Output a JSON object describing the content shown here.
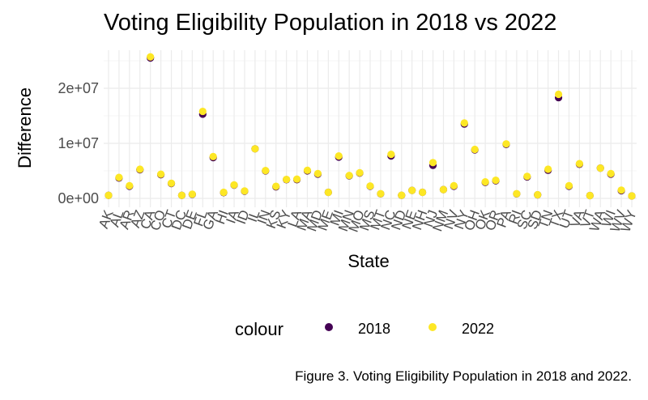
{
  "caption": "Figure 3. Voting Eligibility Population in 2018 and 2022.",
  "chart_data": {
    "type": "scatter",
    "title": "Voting Eligibility Population in 2018 vs 2022",
    "xlabel": "State",
    "ylabel": "Difference",
    "ylim": [
      0,
      26000000
    ],
    "yticks": [
      0,
      10000000,
      20000000
    ],
    "ytick_labels": [
      "0e+00",
      "1e+07",
      "2e+07"
    ],
    "grid": true,
    "legend": {
      "title": "colour",
      "position": "bottom"
    },
    "categories": [
      "AK",
      "AL",
      "AR",
      "AZ",
      "CA",
      "CO",
      "CT",
      "DC",
      "DE",
      "FL",
      "GA",
      "HI",
      "IA",
      "ID",
      "IL",
      "IN",
      "KS",
      "KY",
      "LA",
      "MA",
      "MD",
      "ME",
      "MI",
      "MN",
      "MO",
      "MS",
      "MT",
      "NC",
      "ND",
      "NE",
      "NH",
      "NJ",
      "NM",
      "NV",
      "NY",
      "OH",
      "OK",
      "OR",
      "PA",
      "RI",
      "SC",
      "SD",
      "TN",
      "TX",
      "UT",
      "VA",
      "VT",
      "WA",
      "WI",
      "WV",
      "WY"
    ],
    "series": [
      {
        "name": "2018",
        "color": "#440154",
        "values": [
          550000,
          3700000,
          2200000,
          5200000,
          25500000,
          4300000,
          2700000,
          550000,
          720000,
          15300000,
          7400000,
          1050000,
          2400000,
          1300000,
          9000000,
          5000000,
          2100000,
          3400000,
          3400000,
          5000000,
          4400000,
          1100000,
          7500000,
          4100000,
          4600000,
          2200000,
          820000,
          7700000,
          560000,
          1450000,
          1100000,
          6000000,
          1600000,
          2200000,
          13500000,
          8800000,
          2900000,
          3200000,
          9800000,
          820000,
          3900000,
          640000,
          5100000,
          18300000,
          2200000,
          6200000,
          510000,
          5500000,
          4400000,
          1400000,
          440000
        ]
      },
      {
        "name": "2022",
        "color": "#fde725",
        "values": [
          550000,
          3800000,
          2300000,
          5300000,
          25700000,
          4400000,
          2750000,
          550000,
          750000,
          15800000,
          7600000,
          1100000,
          2450000,
          1350000,
          9000000,
          5050000,
          2200000,
          3450000,
          3500000,
          5100000,
          4500000,
          1100000,
          7700000,
          4150000,
          4650000,
          2250000,
          850000,
          8000000,
          570000,
          1450000,
          1100000,
          6500000,
          1600000,
          2300000,
          13700000,
          8900000,
          3000000,
          3300000,
          9900000,
          850000,
          4000000,
          660000,
          5300000,
          18900000,
          2300000,
          6300000,
          520000,
          5500000,
          4500000,
          1500000,
          450000
        ]
      }
    ]
  }
}
